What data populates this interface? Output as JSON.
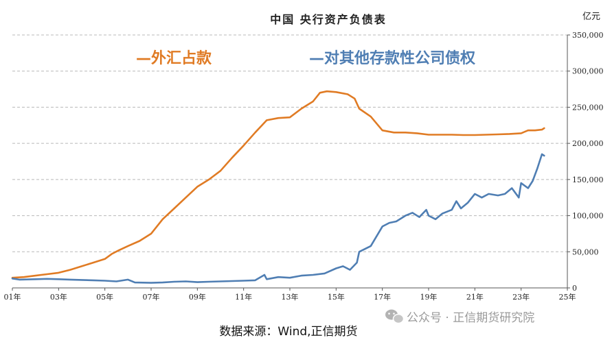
{
  "chart_data": {
    "type": "line",
    "title": "中国  央行资产负债表",
    "unit_label": "亿元",
    "x_tick_labels": [
      "01年",
      "03年",
      "05年",
      "07年",
      "09年",
      "11年",
      "13年",
      "15年",
      "17年",
      "19年",
      "21年",
      "23年",
      "25年"
    ],
    "x_tick_values": [
      2001,
      2003,
      2005,
      2007,
      2009,
      2011,
      2013,
      2015,
      2017,
      2019,
      2021,
      2023,
      2025
    ],
    "xlim": [
      2001,
      2025
    ],
    "y_tick_labels": [
      "0",
      "50,000",
      "100,000",
      "150,000",
      "200,000",
      "250,000",
      "300,000",
      "350,000"
    ],
    "y_tick_values": [
      0,
      50000,
      100000,
      150000,
      200000,
      250000,
      300000,
      350000
    ],
    "ylim": [
      0,
      350000
    ],
    "grid": "horizontal dashed",
    "legend_placement": "top-left",
    "series": [
      {
        "name": "外汇占款",
        "legend_label": "—外汇占款",
        "color": "#E07B24",
        "points": [
          [
            2001.0,
            14000
          ],
          [
            2001.5,
            15000
          ],
          [
            2002.0,
            17000
          ],
          [
            2002.5,
            19000
          ],
          [
            2003.0,
            21000
          ],
          [
            2003.5,
            25000
          ],
          [
            2004.0,
            30000
          ],
          [
            2004.5,
            35000
          ],
          [
            2005.0,
            40000
          ],
          [
            2005.3,
            47000
          ],
          [
            2005.6,
            52000
          ],
          [
            2006.0,
            58000
          ],
          [
            2006.5,
            65000
          ],
          [
            2007.0,
            75000
          ],
          [
            2007.5,
            95000
          ],
          [
            2008.0,
            110000
          ],
          [
            2008.5,
            125000
          ],
          [
            2009.0,
            140000
          ],
          [
            2009.5,
            150000
          ],
          [
            2010.0,
            162000
          ],
          [
            2010.5,
            180000
          ],
          [
            2011.0,
            197000
          ],
          [
            2011.5,
            215000
          ],
          [
            2012.0,
            232000
          ],
          [
            2012.5,
            235000
          ],
          [
            2013.0,
            236000
          ],
          [
            2013.5,
            248000
          ],
          [
            2014.0,
            258000
          ],
          [
            2014.3,
            270000
          ],
          [
            2014.6,
            272000
          ],
          [
            2015.0,
            271000
          ],
          [
            2015.5,
            268000
          ],
          [
            2015.8,
            262000
          ],
          [
            2016.0,
            248000
          ],
          [
            2016.5,
            237000
          ],
          [
            2017.0,
            218000
          ],
          [
            2017.5,
            215000
          ],
          [
            2018.0,
            215000
          ],
          [
            2018.5,
            214000
          ],
          [
            2019.0,
            212000
          ],
          [
            2019.5,
            212000
          ],
          [
            2020.0,
            212000
          ],
          [
            2020.5,
            211500
          ],
          [
            2021.0,
            211500
          ],
          [
            2021.5,
            212000
          ],
          [
            2022.0,
            212500
          ],
          [
            2022.5,
            213000
          ],
          [
            2023.0,
            214000
          ],
          [
            2023.3,
            218000
          ],
          [
            2023.6,
            218000
          ],
          [
            2023.9,
            219000
          ],
          [
            2024.0,
            221000
          ]
        ]
      },
      {
        "name": "对其他存款性公司债权",
        "legend_label": "—对其他存款性公司债权",
        "color": "#4F7EB3",
        "points": [
          [
            2001.0,
            13000
          ],
          [
            2001.3,
            11500
          ],
          [
            2002.0,
            12000
          ],
          [
            2002.5,
            12500
          ],
          [
            2003.0,
            12000
          ],
          [
            2003.5,
            11500
          ],
          [
            2004.0,
            11000
          ],
          [
            2004.5,
            10500
          ],
          [
            2005.0,
            10000
          ],
          [
            2005.5,
            9000
          ],
          [
            2006.0,
            11500
          ],
          [
            2006.3,
            7500
          ],
          [
            2007.0,
            7000
          ],
          [
            2007.5,
            7500
          ],
          [
            2008.0,
            8500
          ],
          [
            2008.5,
            9000
          ],
          [
            2009.0,
            8000
          ],
          [
            2009.5,
            8500
          ],
          [
            2010.0,
            9000
          ],
          [
            2010.5,
            9500
          ],
          [
            2011.0,
            10000
          ],
          [
            2011.5,
            10500
          ],
          [
            2011.9,
            18000
          ],
          [
            2012.0,
            12000
          ],
          [
            2012.5,
            15000
          ],
          [
            2013.0,
            14000
          ],
          [
            2013.5,
            17000
          ],
          [
            2014.0,
            18000
          ],
          [
            2014.5,
            20000
          ],
          [
            2015.0,
            27000
          ],
          [
            2015.3,
            30000
          ],
          [
            2015.6,
            25000
          ],
          [
            2015.9,
            35000
          ],
          [
            2016.0,
            50000
          ],
          [
            2016.5,
            58000
          ],
          [
            2017.0,
            85000
          ],
          [
            2017.3,
            90000
          ],
          [
            2017.6,
            92000
          ],
          [
            2018.0,
            100000
          ],
          [
            2018.3,
            104000
          ],
          [
            2018.6,
            98000
          ],
          [
            2018.9,
            108000
          ],
          [
            2019.0,
            100000
          ],
          [
            2019.3,
            95000
          ],
          [
            2019.6,
            103000
          ],
          [
            2020.0,
            108000
          ],
          [
            2020.2,
            120000
          ],
          [
            2020.4,
            110000
          ],
          [
            2020.7,
            118000
          ],
          [
            2021.0,
            130000
          ],
          [
            2021.3,
            125000
          ],
          [
            2021.6,
            130000
          ],
          [
            2022.0,
            128000
          ],
          [
            2022.3,
            130000
          ],
          [
            2022.6,
            138000
          ],
          [
            2022.9,
            125000
          ],
          [
            2023.0,
            145000
          ],
          [
            2023.3,
            138000
          ],
          [
            2023.5,
            148000
          ],
          [
            2023.7,
            165000
          ],
          [
            2023.9,
            185000
          ],
          [
            2024.0,
            183000
          ]
        ]
      }
    ]
  },
  "footer": {
    "source_text": "数据来源：Wind,正信期货",
    "watermark_text": "公众号 · 正信期货研究院"
  }
}
